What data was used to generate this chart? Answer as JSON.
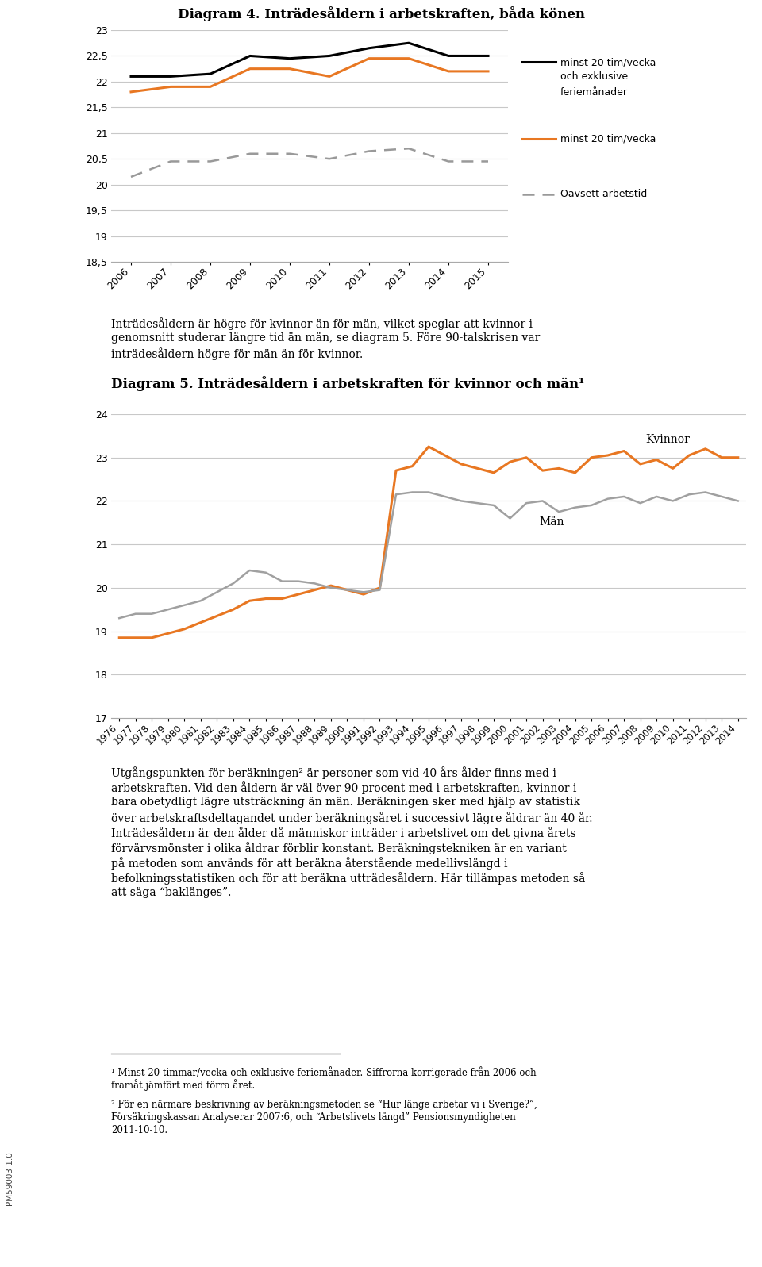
{
  "title1": "Diagram 4. Inträdesåldern i arbetskraften, båda könen",
  "title2": "Diagram 5. Inträdesåldern i arbetskraften för kvinnor och män¹",
  "chart1": {
    "years": [
      2006,
      2007,
      2008,
      2009,
      2010,
      2011,
      2012,
      2013,
      2014,
      2015
    ],
    "series1_black": [
      22.1,
      22.1,
      22.15,
      22.5,
      22.45,
      22.5,
      22.65,
      22.75,
      22.5,
      22.5
    ],
    "series2_orange": [
      21.8,
      21.9,
      21.9,
      22.25,
      22.25,
      22.1,
      22.45,
      22.45,
      22.2,
      22.2
    ],
    "series3_gray_dashed": [
      20.15,
      20.45,
      20.45,
      20.6,
      20.6,
      20.5,
      20.65,
      20.7,
      20.45,
      20.45
    ],
    "ylim": [
      18.5,
      23
    ],
    "yticks": [
      18.5,
      19.0,
      19.5,
      20.0,
      20.5,
      21.0,
      21.5,
      22.0,
      22.5,
      23.0
    ],
    "ytick_labels": [
      "18,5",
      "19",
      "19,5",
      "20",
      "20,5",
      "21",
      "21,5",
      "22",
      "22,5",
      "23"
    ],
    "legend1_line1": "minst 20 tim/vecka",
    "legend1_line2": "och exklusive",
    "legend1_line3": "feriemånader",
    "legend2": "minst 20 tim/vecka",
    "legend3": "Oavsett arbetstid",
    "color1": "#000000",
    "color2": "#E87722",
    "color3": "#999999"
  },
  "chart2": {
    "years": [
      1976,
      1977,
      1978,
      1979,
      1980,
      1981,
      1982,
      1983,
      1984,
      1985,
      1986,
      1987,
      1988,
      1989,
      1990,
      1991,
      1992,
      1993,
      1994,
      1995,
      1996,
      1997,
      1998,
      1999,
      2000,
      2001,
      2002,
      2003,
      2004,
      2005,
      2006,
      2007,
      2008,
      2009,
      2010,
      2011,
      2012,
      2013,
      2014
    ],
    "kvinnor": [
      18.85,
      18.85,
      18.85,
      18.95,
      19.05,
      19.2,
      19.35,
      19.5,
      19.7,
      19.75,
      19.75,
      19.85,
      19.95,
      20.05,
      19.95,
      19.85,
      20.0,
      22.7,
      22.8,
      23.25,
      23.05,
      22.85,
      22.75,
      22.65,
      22.9,
      23.0,
      22.7,
      22.75,
      22.65,
      23.0,
      23.05,
      23.15,
      22.85,
      22.95,
      22.75,
      23.05,
      23.2,
      23.0,
      23.0
    ],
    "man": [
      19.3,
      19.4,
      19.4,
      19.5,
      19.6,
      19.7,
      19.9,
      20.1,
      20.4,
      20.35,
      20.15,
      20.15,
      20.1,
      20.0,
      19.95,
      19.9,
      19.95,
      22.15,
      22.2,
      22.2,
      22.1,
      22.0,
      21.95,
      21.9,
      21.6,
      21.95,
      22.0,
      21.75,
      21.85,
      21.9,
      22.05,
      22.1,
      21.95,
      22.1,
      22.0,
      22.15,
      22.2,
      22.1,
      22.0
    ],
    "ylim": [
      17,
      24
    ],
    "yticks": [
      17,
      18,
      19,
      20,
      21,
      22,
      23,
      24
    ],
    "ytick_labels": [
      "17",
      "18",
      "19",
      "20",
      "21",
      "22",
      "23",
      "24"
    ],
    "label_kvinnor": "Kvinnor",
    "label_man": "Män",
    "color_kvinnor": "#E87722",
    "color_man": "#A0A0A0"
  },
  "text_between_lines": [
    "Inträdesåldern är högre för kvinnor än för män, vilket speglar att kvinnor i",
    "genomsnitt studerar längre tid än män, se diagram 5. Före 90-talskrisen var",
    "inträdesåldern högre för män än för kvinnor."
  ],
  "text_after_lines": [
    "Utgångspunkten för beräkningen² är personer som vid 40 års ålder finns med i",
    "arbetskraften. Vid den åldern är väl över 90 procent med i arbetskraften, kvinnor i",
    "bara obetydligt lägre utsträckning än män. Beräkningen sker med hjälp av statistik",
    "över arbetskraftsdeltagandet under beräkningsåret i successivt lägre åldrar än 40 år.",
    "Inträdesåldern är den ålder då människor inträder i arbetslivet om det givna årets",
    "förvärvsmönster i olika åldrar förblir konstant. Beräkningstekniken är en variant",
    "på metoden som används för att beräkna återstående medellivslängd i",
    "befolkningsstatistiken och för att beräkna utträdesåldern. Här tillämpas metoden så",
    "att säga “baklänges”."
  ],
  "footnote1_lines": [
    "¹ Minst 20 timmar/vecka och exklusive feriemånader. Siffrorna korrigerade från 2006 och",
    "framåt jämfört med förra året."
  ],
  "footnote2_lines": [
    "² För en närmare beskrivning av beräkningsmetoden se “Hur länge arbetar vi i Sverige?”,",
    "Försäkringskassan Analyserar 2007:6, och “Arbetslivets längd” Pensionsmyndigheten",
    "2011-10-10."
  ],
  "side_label": "PM59003 1.0",
  "bg": "#ffffff",
  "grid_color": "#C8C8C8",
  "spine_color": "#AAAAAA"
}
